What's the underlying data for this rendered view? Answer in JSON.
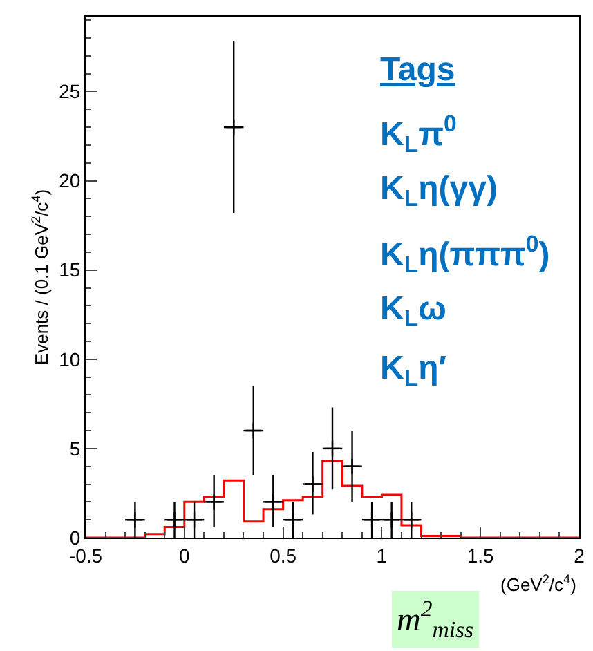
{
  "chart_data": {
    "type": "histogram",
    "xlabel": "(GeV$^{2}$/c$^{4}$)",
    "ylabel": "Events / (0.1 GeV$^{2}$/c$^{4}$)",
    "xlim": [
      -0.5,
      2
    ],
    "xticks": [
      -0.5,
      0,
      0.5,
      1,
      1.5,
      2
    ],
    "ylim": [
      0,
      29.2
    ],
    "yticks": [
      0,
      5,
      10,
      15,
      20,
      25
    ],
    "marker": "cross",
    "series": [
      {
        "color": "#ff0000",
        "bins": [
          -0.5,
          -0.4,
          -0.3,
          -0.2,
          -0.1,
          0,
          0.1,
          0.2,
          0.3,
          0.4,
          0.5,
          0.6,
          0.7,
          0.8,
          0.9,
          1.0,
          1.1,
          1.2,
          1.3,
          1.4,
          1.5,
          1.6,
          1.7,
          1.8,
          1.9,
          2.0
        ],
        "values": [
          0,
          0,
          0,
          0.2,
          0.6,
          2.0,
          2.3,
          3.2,
          0.9,
          1.6,
          2.1,
          2.3,
          4.3,
          2.9,
          2.3,
          2.4,
          0.7,
          0.1,
          0.1,
          0,
          0,
          0,
          0,
          0,
          0
        ]
      },
      {
        "type": "scatter",
        "color": "#000000",
        "x": [
          -0.25,
          -0.05,
          0.05,
          0.15,
          0.25,
          0.35,
          0.45,
          0.55,
          0.65,
          0.75,
          0.85,
          0.95,
          1.05,
          1.15
        ],
        "values": [
          1,
          1,
          1,
          2,
          23,
          6,
          2,
          1,
          3,
          5,
          4,
          1,
          1,
          1
        ],
        "errors": [
          [
            0,
            2
          ],
          [
            0,
            2
          ],
          [
            0,
            2
          ],
          [
            0.6,
            3.5
          ],
          [
            18.2,
            27.8
          ],
          [
            3.5,
            8.5
          ],
          [
            0.6,
            3.5
          ],
          [
            0,
            2
          ],
          [
            1.3,
            4.8
          ],
          [
            2.7,
            7.3
          ],
          [
            2,
            6
          ],
          [
            0,
            2
          ],
          [
            0,
            2
          ],
          [
            0,
            2
          ]
        ],
        "xerrors": [
          0.05,
          0.05,
          0.05,
          0.05,
          0.05,
          0.05,
          0.05,
          0.05,
          0.05,
          0.05,
          0.05,
          0.05,
          0.05,
          0.05
        ]
      }
    ],
    "annotations": [
      "Tags",
      "K$_{L}$π$^{0}$",
      "K$_{L}$η(γγ)",
      "K$_{L}$η(πππ$^{0}$)",
      "K$_{L}$ω",
      "K$_{L}$η′",
      "m$^{2}$$_{miss}$"
    ]
  }
}
